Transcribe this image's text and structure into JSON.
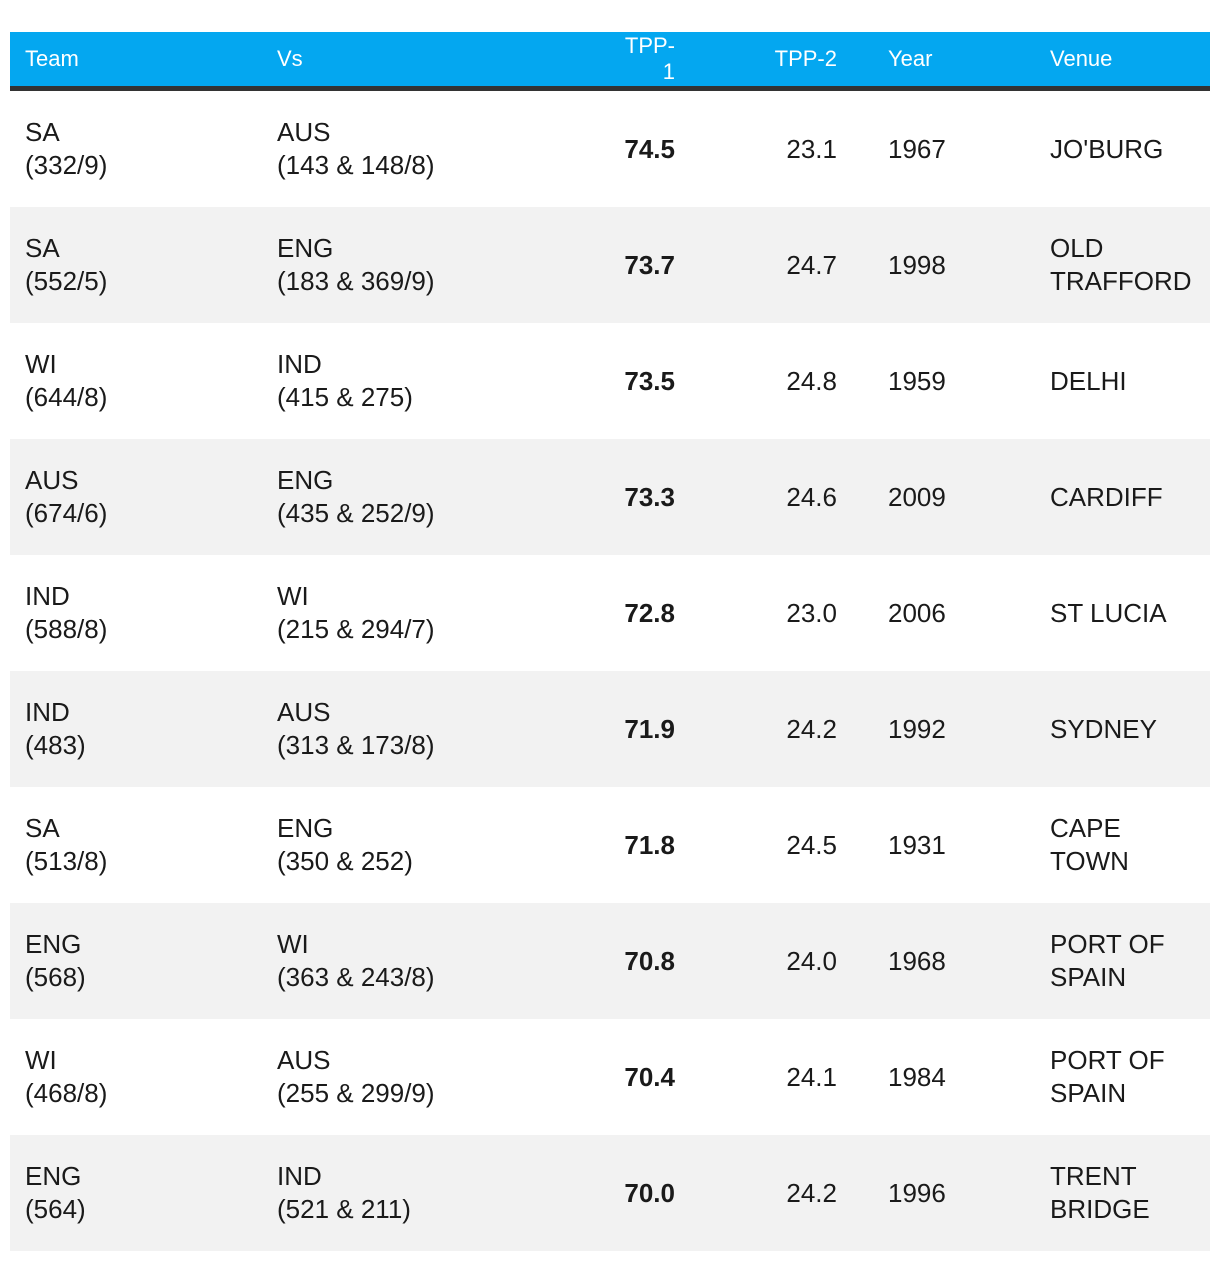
{
  "colors": {
    "header_bg": "#04a7f0",
    "header_text": "#ffffff",
    "row_alt_bg": "#f2f2f2",
    "border": "#333333",
    "text": "#1a1a1a"
  },
  "chart_data": {
    "type": "table",
    "columns": [
      "Team",
      "Vs",
      "TPP-1",
      "TPP-2",
      "Year",
      "Venue"
    ],
    "rows": [
      {
        "team": "SA\n(332/9)",
        "vs": "AUS\n(143 & 148/8)",
        "tpp1": "74.5",
        "tpp2": "23.1",
        "year": "1967",
        "venue": "JO'BURG"
      },
      {
        "team": "SA\n(552/5)",
        "vs": "ENG\n(183 & 369/9)",
        "tpp1": "73.7",
        "tpp2": "24.7",
        "year": "1998",
        "venue": "OLD\nTRAFFORD"
      },
      {
        "team": "WI\n(644/8)",
        "vs": "IND\n(415 & 275)",
        "tpp1": "73.5",
        "tpp2": "24.8",
        "year": "1959",
        "venue": "DELHI"
      },
      {
        "team": "AUS\n(674/6)",
        "vs": "ENG\n(435 & 252/9)",
        "tpp1": "73.3",
        "tpp2": "24.6",
        "year": "2009",
        "venue": "CARDIFF"
      },
      {
        "team": "IND\n(588/8)",
        "vs": "WI\n(215 & 294/7)",
        "tpp1": "72.8",
        "tpp2": "23.0",
        "year": "2006",
        "venue": "ST LUCIA"
      },
      {
        "team": "IND\n(483)",
        "vs": "AUS\n(313 & 173/8)",
        "tpp1": "71.9",
        "tpp2": "24.2",
        "year": "1992",
        "venue": "SYDNEY"
      },
      {
        "team": "SA\n(513/8)",
        "vs": "ENG\n(350 & 252)",
        "tpp1": "71.8",
        "tpp2": "24.5",
        "year": "1931",
        "venue": "CAPE\nTOWN"
      },
      {
        "team": "ENG\n(568)",
        "vs": "WI\n(363 & 243/8)",
        "tpp1": "70.8",
        "tpp2": "24.0",
        "year": "1968",
        "venue": "PORT OF\nSPAIN"
      },
      {
        "team": "WI\n(468/8)",
        "vs": "AUS\n(255 & 299/9)",
        "tpp1": "70.4",
        "tpp2": "24.1",
        "year": "1984",
        "venue": "PORT OF\nSPAIN"
      },
      {
        "team": "ENG\n(564)",
        "vs": "IND\n(521 & 211)",
        "tpp1": "70.0",
        "tpp2": "24.2",
        "year": "1996",
        "venue": "TRENT\nBRIDGE"
      }
    ]
  }
}
